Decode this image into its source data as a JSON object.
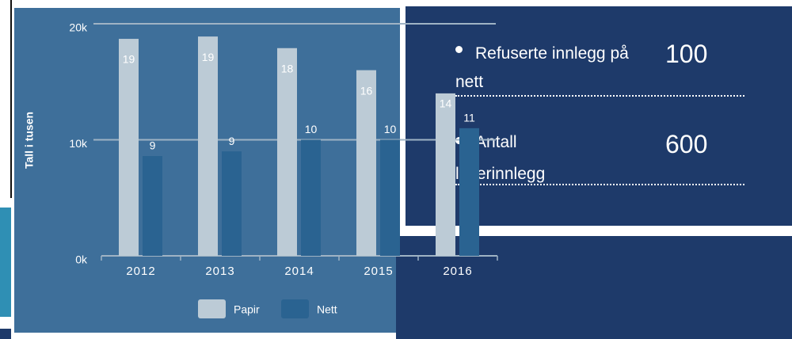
{
  "chart_data": {
    "type": "bar",
    "ylabel": "Tall i tusen",
    "categories": [
      "2012",
      "2013",
      "2014",
      "2015",
      "2016"
    ],
    "series": [
      {
        "name": "Papir",
        "color": "#bccbd6",
        "values": [
          18.7,
          18.9,
          17.9,
          16.0,
          14.0
        ],
        "value_labels": [
          "19",
          "19",
          "18",
          "16",
          "14"
        ]
      },
      {
        "name": "Nett",
        "color": "#2a6391",
        "values": [
          8.6,
          9.0,
          10.0,
          10.0,
          11.0
        ],
        "value_labels": [
          "9",
          "9",
          "10",
          "10",
          "11"
        ]
      }
    ],
    "ylim": [
      0,
      20
    ],
    "yticks": [
      {
        "value": 0,
        "label": "0k"
      },
      {
        "value": 10,
        "label": "10k"
      },
      {
        "value": 20,
        "label": "20k"
      }
    ],
    "grid": true,
    "legend": "bottom"
  },
  "panel": {
    "items": [
      {
        "label": "Refuserte innlegg på nett",
        "value": 100
      },
      {
        "label": "Antall leserinnlegg",
        "value": 600
      }
    ]
  }
}
